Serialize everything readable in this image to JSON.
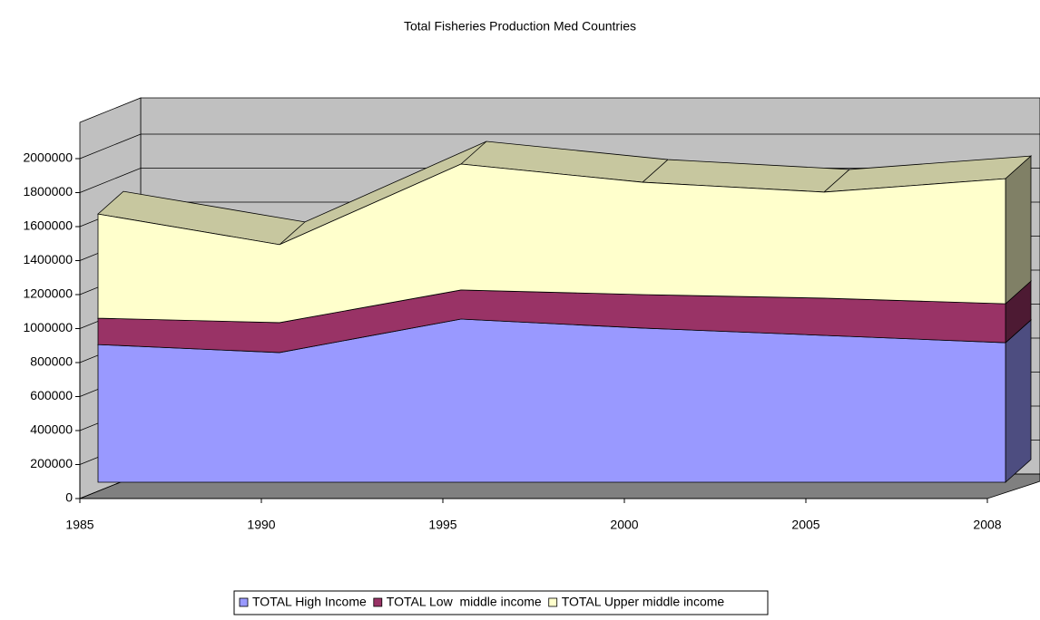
{
  "chart_data": {
    "type": "area3d",
    "title": "Total Fisheries Production Med Countries",
    "categories": [
      "1985",
      "1990",
      "1995",
      "2000",
      "2005",
      "2008"
    ],
    "series": [
      {
        "name": "TOTAL High Income",
        "color": "#9999ff",
        "values": [
          810000,
          763000,
          960000,
          907000,
          864000,
          821000
        ]
      },
      {
        "name": "TOTAL Low  middle income",
        "color": "#993366",
        "values": [
          155000,
          176000,
          171000,
          197000,
          219000,
          229000
        ]
      },
      {
        "name": "TOTAL Upper middle income",
        "color": "#ffffcc",
        "values": [
          613000,
          459000,
          741000,
          661000,
          624000,
          736000
        ]
      }
    ],
    "stacked": true,
    "ylim": [
      0,
      2000000
    ],
    "yticks": [
      0,
      200000,
      400000,
      600000,
      800000,
      1000000,
      1200000,
      1400000,
      1600000,
      1800000,
      2000000
    ],
    "grid": true,
    "legend": "bottom"
  }
}
